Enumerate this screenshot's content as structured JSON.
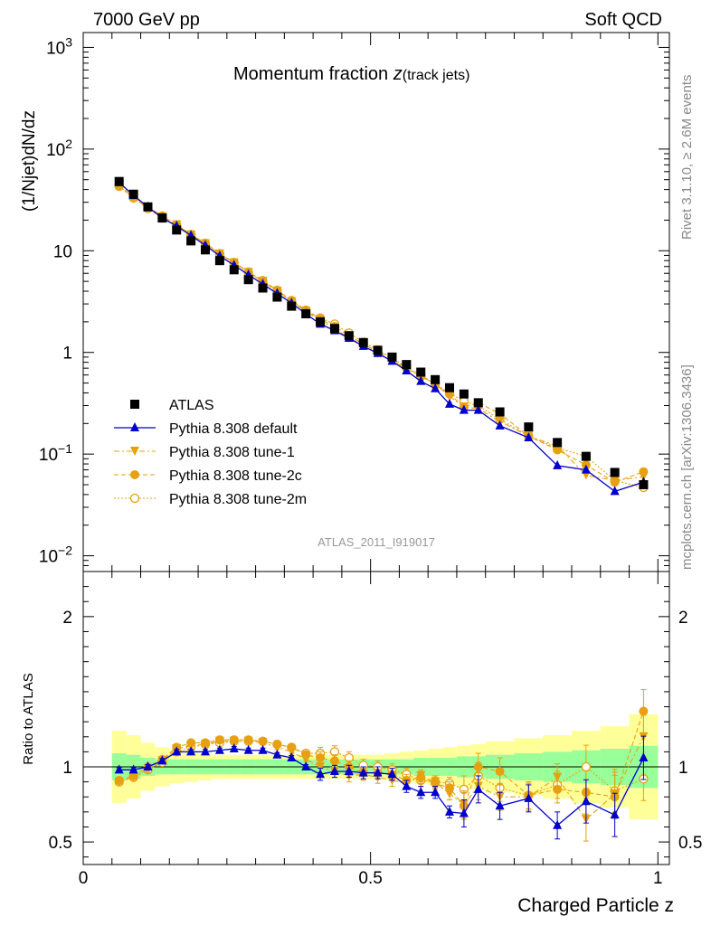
{
  "header": {
    "left": "7000 GeV pp",
    "right": "Soft QCD"
  },
  "side_labels": {
    "rivet": "Rivet 3.1.10, ≥ 2.6M events",
    "mcplots": "mcplots.cern.ch [arXiv:1306.3436]"
  },
  "title": {
    "main": "Momentum fraction ",
    "z": "z",
    "sub": "(track jets)"
  },
  "analysis_id": "ATLAS_2011_I919017",
  "colors": {
    "atlas": "#000000",
    "default": "#0000cc",
    "tune": "#e6a010",
    "band_inner": "#99ff99",
    "band_outer": "#ffff99"
  },
  "chart_data": [
    {
      "type": "scatter",
      "panel": "main",
      "ylabel": "(1/Njet)dN/dz",
      "yscale": "log",
      "ylim": [
        0.007,
        1400
      ],
      "xlim": [
        0,
        1.02
      ],
      "ytick_labels": [
        "10^-2",
        "10^-1",
        "1",
        "10",
        "10^2",
        "10^3"
      ],
      "x": [
        0.0625,
        0.0875,
        0.1125,
        0.1375,
        0.1625,
        0.1875,
        0.2125,
        0.2375,
        0.2625,
        0.2875,
        0.3125,
        0.3375,
        0.3625,
        0.3875,
        0.4125,
        0.4375,
        0.4625,
        0.4875,
        0.5125,
        0.5375,
        0.5625,
        0.5875,
        0.6125,
        0.6375,
        0.6625,
        0.6875,
        0.725,
        0.775,
        0.825,
        0.875,
        0.925,
        0.975
      ],
      "series": [
        {
          "name": "ATLAS",
          "marker": "square",
          "values": [
            48,
            36,
            27,
            21,
            16,
            12.5,
            10.2,
            8.0,
            6.5,
            5.2,
            4.3,
            3.5,
            2.85,
            2.4,
            2.0,
            1.72,
            1.46,
            1.25,
            1.05,
            0.9,
            0.76,
            0.64,
            0.54,
            0.45,
            0.39,
            0.32,
            0.26,
            0.185,
            0.13,
            0.095,
            0.066,
            0.05
          ]
        },
        {
          "name": "Pythia 8.308 default",
          "marker": "triangle-up",
          "style": "solid",
          "values": [
            47,
            35,
            27,
            21,
            17.5,
            14.1,
            11.3,
            8.9,
            7.2,
            5.8,
            4.7,
            3.8,
            3.05,
            2.4,
            1.9,
            1.64,
            1.38,
            1.15,
            0.98,
            0.82,
            0.66,
            0.52,
            0.44,
            0.31,
            0.27,
            0.27,
            0.19,
            0.145,
            0.077,
            0.07,
            0.043,
            0.053
          ]
        },
        {
          "name": "Pythia 8.308 tune-1",
          "marker": "triangle-down",
          "style": "dashdot",
          "values": [
            43,
            33,
            26.5,
            21.5,
            18,
            14.3,
            11.7,
            9.3,
            7.6,
            6.1,
            5.0,
            4.0,
            3.15,
            2.55,
            2.05,
            1.72,
            1.38,
            1.18,
            0.98,
            0.83,
            0.68,
            0.6,
            0.49,
            0.37,
            0.29,
            0.28,
            0.21,
            0.15,
            0.12,
            0.062,
            0.055,
            0.06
          ]
        },
        {
          "name": "Pythia 8.308 tune-2c",
          "marker": "circle",
          "style": "dashed",
          "values": [
            44,
            34,
            27,
            22,
            18.1,
            14.5,
            11.9,
            9.4,
            7.7,
            6.2,
            5.1,
            4.1,
            3.25,
            2.6,
            2.12,
            1.8,
            1.47,
            1.2,
            1.02,
            0.86,
            0.7,
            0.6,
            0.48,
            0.39,
            0.29,
            0.32,
            0.25,
            0.15,
            0.11,
            0.078,
            0.053,
            0.067
          ]
        },
        {
          "name": "Pythia 8.308 tune-2m",
          "marker": "open-circle",
          "style": "dotted",
          "values": [
            43,
            33,
            26,
            21,
            17.5,
            14.2,
            11.7,
            9.3,
            7.6,
            6.1,
            5.0,
            4.0,
            3.2,
            2.6,
            2.18,
            1.9,
            1.55,
            1.26,
            1.06,
            0.88,
            0.72,
            0.58,
            0.49,
            0.4,
            0.33,
            0.3,
            0.22,
            0.15,
            0.115,
            0.095,
            0.055,
            0.047
          ]
        }
      ]
    },
    {
      "type": "scatter",
      "panel": "ratio",
      "ylabel": "Ratio to ATLAS",
      "xlabel": "Charged Particle z",
      "ylim": [
        0.35,
        2.3
      ],
      "xlim": [
        0,
        1.02
      ],
      "xtick_labels": [
        "0",
        "0.5",
        "1"
      ],
      "ytick_labels": [
        "0.5",
        "1",
        "2"
      ],
      "x": [
        0.0625,
        0.0875,
        0.1125,
        0.1375,
        0.1625,
        0.1875,
        0.2125,
        0.2375,
        0.2625,
        0.2875,
        0.3125,
        0.3375,
        0.3625,
        0.3875,
        0.4125,
        0.4375,
        0.4625,
        0.4875,
        0.5125,
        0.5375,
        0.5625,
        0.5875,
        0.6125,
        0.6375,
        0.6625,
        0.6875,
        0.725,
        0.775,
        0.825,
        0.875,
        0.925,
        0.975
      ],
      "bands": {
        "inner_half": [
          0.09,
          0.08,
          0.06,
          0.05,
          0.05,
          0.05,
          0.05,
          0.05,
          0.05,
          0.05,
          0.05,
          0.05,
          0.05,
          0.05,
          0.05,
          0.05,
          0.05,
          0.05,
          0.05,
          0.05,
          0.05,
          0.06,
          0.06,
          0.06,
          0.07,
          0.07,
          0.08,
          0.09,
          0.1,
          0.11,
          0.12,
          0.14
        ],
        "outer_half": [
          0.24,
          0.21,
          0.16,
          0.13,
          0.11,
          0.1,
          0.09,
          0.08,
          0.08,
          0.08,
          0.08,
          0.08,
          0.08,
          0.08,
          0.08,
          0.08,
          0.08,
          0.08,
          0.08,
          0.09,
          0.1,
          0.11,
          0.12,
          0.13,
          0.14,
          0.15,
          0.17,
          0.19,
          0.21,
          0.24,
          0.27,
          0.35
        ]
      },
      "series": [
        {
          "name": "Pythia 8.308 default",
          "values": [
            0.98,
            0.98,
            1.0,
            1.04,
            1.1,
            1.1,
            1.1,
            1.11,
            1.12,
            1.11,
            1.11,
            1.08,
            1.06,
            1.0,
            0.95,
            0.97,
            0.97,
            0.96,
            0.96,
            0.95,
            0.87,
            0.83,
            0.83,
            0.7,
            0.69,
            0.85,
            0.74,
            0.79,
            0.61,
            0.77,
            0.68,
            1.06
          ]
        },
        {
          "name": "Pythia 8.308 tune-1",
          "values": [
            0.9,
            0.93,
            0.98,
            1.04,
            1.12,
            1.14,
            1.15,
            1.17,
            1.17,
            1.17,
            1.16,
            1.13,
            1.1,
            1.05,
            1.0,
            0.97,
            0.94,
            0.95,
            0.93,
            0.91,
            0.89,
            0.94,
            0.9,
            0.82,
            0.75,
            0.87,
            0.8,
            0.8,
            0.93,
            0.65,
            0.82,
            1.2
          ]
        },
        {
          "name": "Pythia 8.308 tune-2c",
          "values": [
            0.91,
            0.94,
            1.0,
            1.05,
            1.13,
            1.16,
            1.16,
            1.18,
            1.18,
            1.18,
            1.17,
            1.15,
            1.13,
            1.08,
            1.06,
            1.04,
            1.0,
            0.96,
            0.96,
            0.95,
            0.91,
            0.93,
            0.89,
            0.86,
            0.74,
            1.0,
            0.97,
            0.81,
            0.85,
            0.83,
            0.8,
            1.37
          ]
        },
        {
          "name": "Pythia 8.308 tune-2m",
          "values": [
            0.9,
            0.93,
            0.98,
            1.03,
            1.1,
            1.13,
            1.15,
            1.16,
            1.17,
            1.17,
            1.17,
            1.15,
            1.13,
            1.09,
            1.09,
            1.1,
            1.06,
            1.01,
            1.0,
            0.98,
            0.95,
            0.91,
            0.9,
            0.89,
            0.85,
            0.94,
            0.86,
            0.81,
            0.88,
            1.0,
            0.84,
            0.92
          ]
        }
      ]
    }
  ]
}
